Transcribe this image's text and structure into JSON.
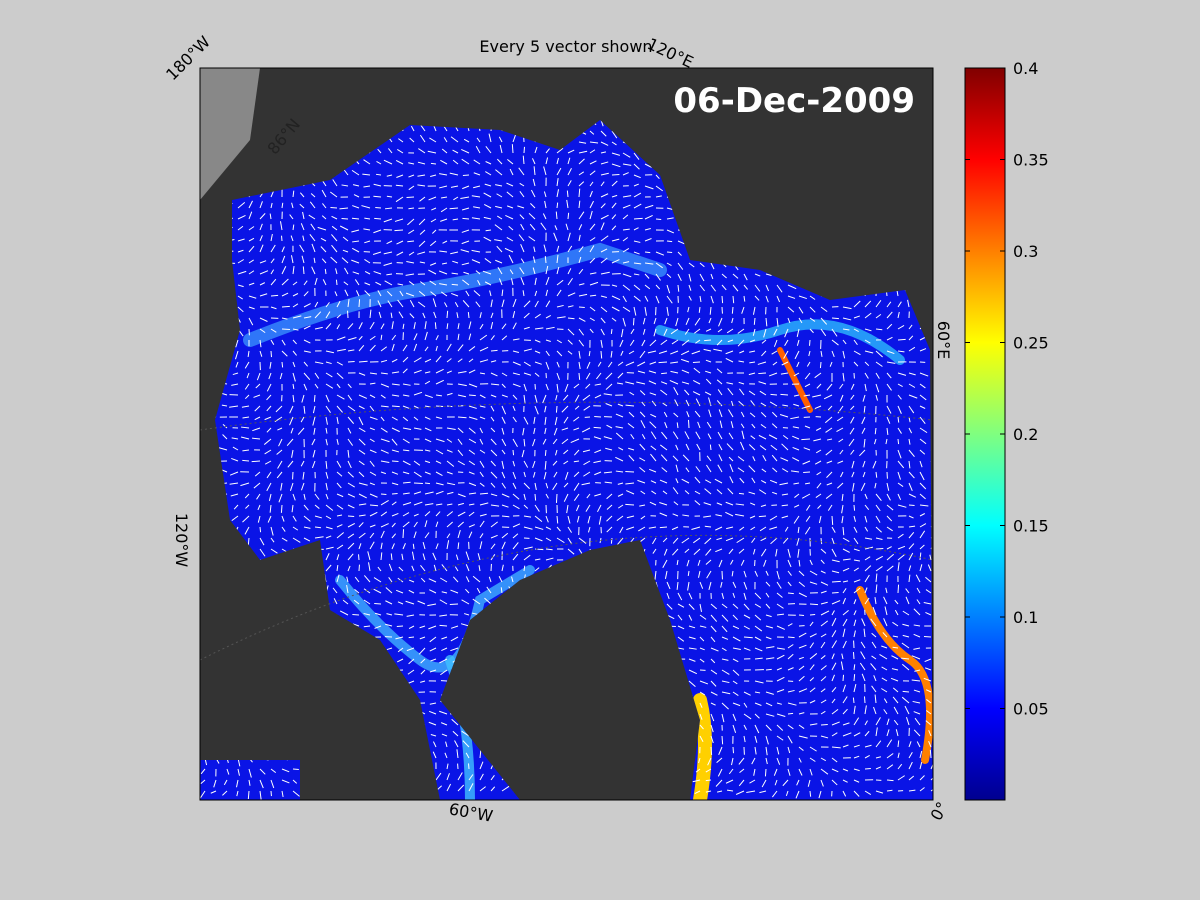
{
  "title": "Every 5 vector shown",
  "date": "06-Dec-2009",
  "colorbar": {
    "lim": [
      0,
      0.4
    ],
    "ticks": [
      0.05,
      0.1,
      0.15,
      0.2,
      0.25,
      0.3,
      0.35,
      0.4
    ]
  },
  "lon_labels": [
    "180°W",
    "120°E",
    "60°E",
    "0°",
    "60°W",
    "120°W"
  ],
  "lat_labels": [
    "86°N"
  ]
}
